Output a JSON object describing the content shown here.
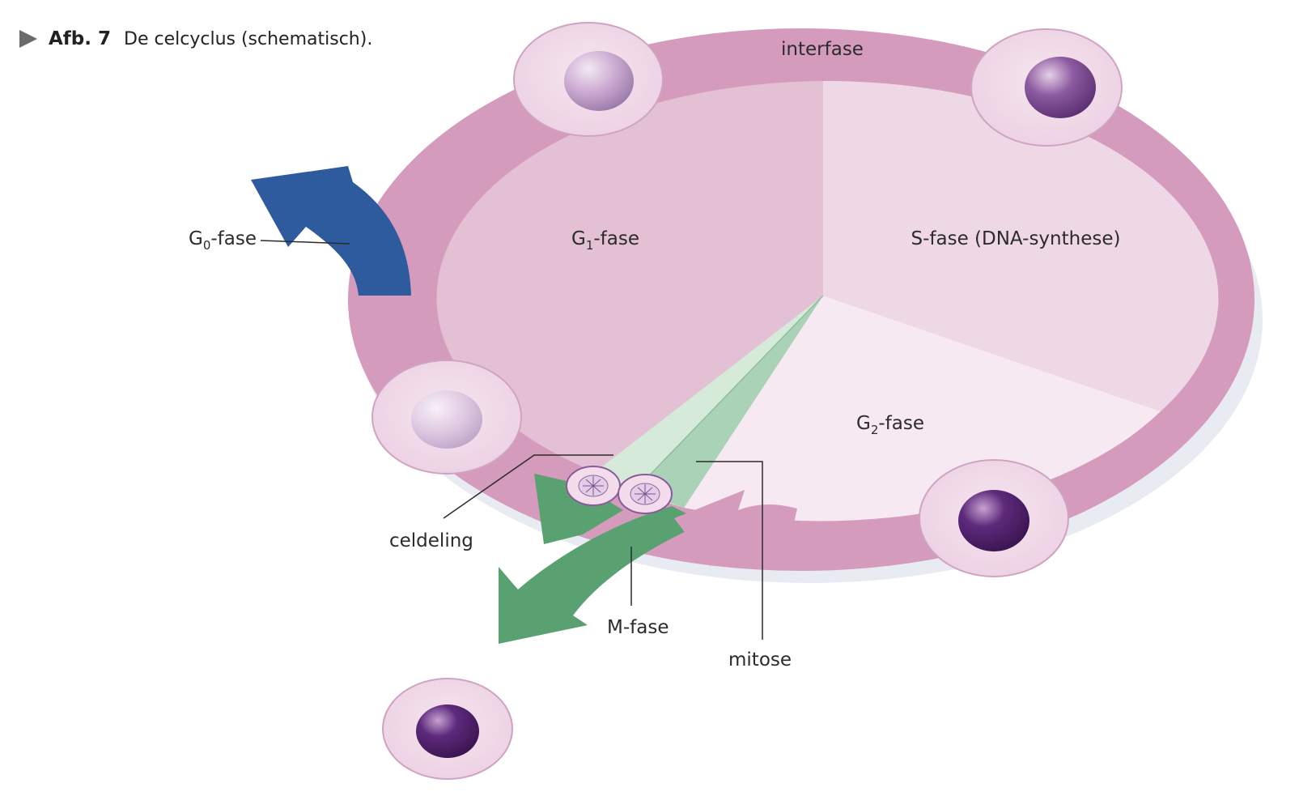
{
  "caption": {
    "number": "Afb. 7",
    "text": "De celcyclus (schematisch)."
  },
  "labels": {
    "interfase": "interfase",
    "g1_main": "G",
    "g1_sub": "1",
    "g1_rest": "-fase",
    "s_phase": "S-fase (DNA-synthese)",
    "g2_main": "G",
    "g2_sub": "2",
    "g2_rest": "-fase",
    "g0_main": "G",
    "g0_sub": "0",
    "g0_rest": "-fase",
    "celdeling": "celdeling",
    "m_fase": "M-fase",
    "mitose": "mitose"
  },
  "colors": {
    "ring": "#d59bbd",
    "g1": "#e3c0d4",
    "s": "#efd8e6",
    "g2": "#f6e9f1",
    "g0_arrow": "#2e5a9e",
    "m_arrow": "#5aa172",
    "return_arrow": "#d59bbd",
    "mitosis_wedge": "#a9d2b6",
    "cell": "#f3dceb",
    "nucleus_dark": "#5a2a78"
  },
  "icons": [
    "cell-icon",
    "dividing-cell-icon"
  ]
}
